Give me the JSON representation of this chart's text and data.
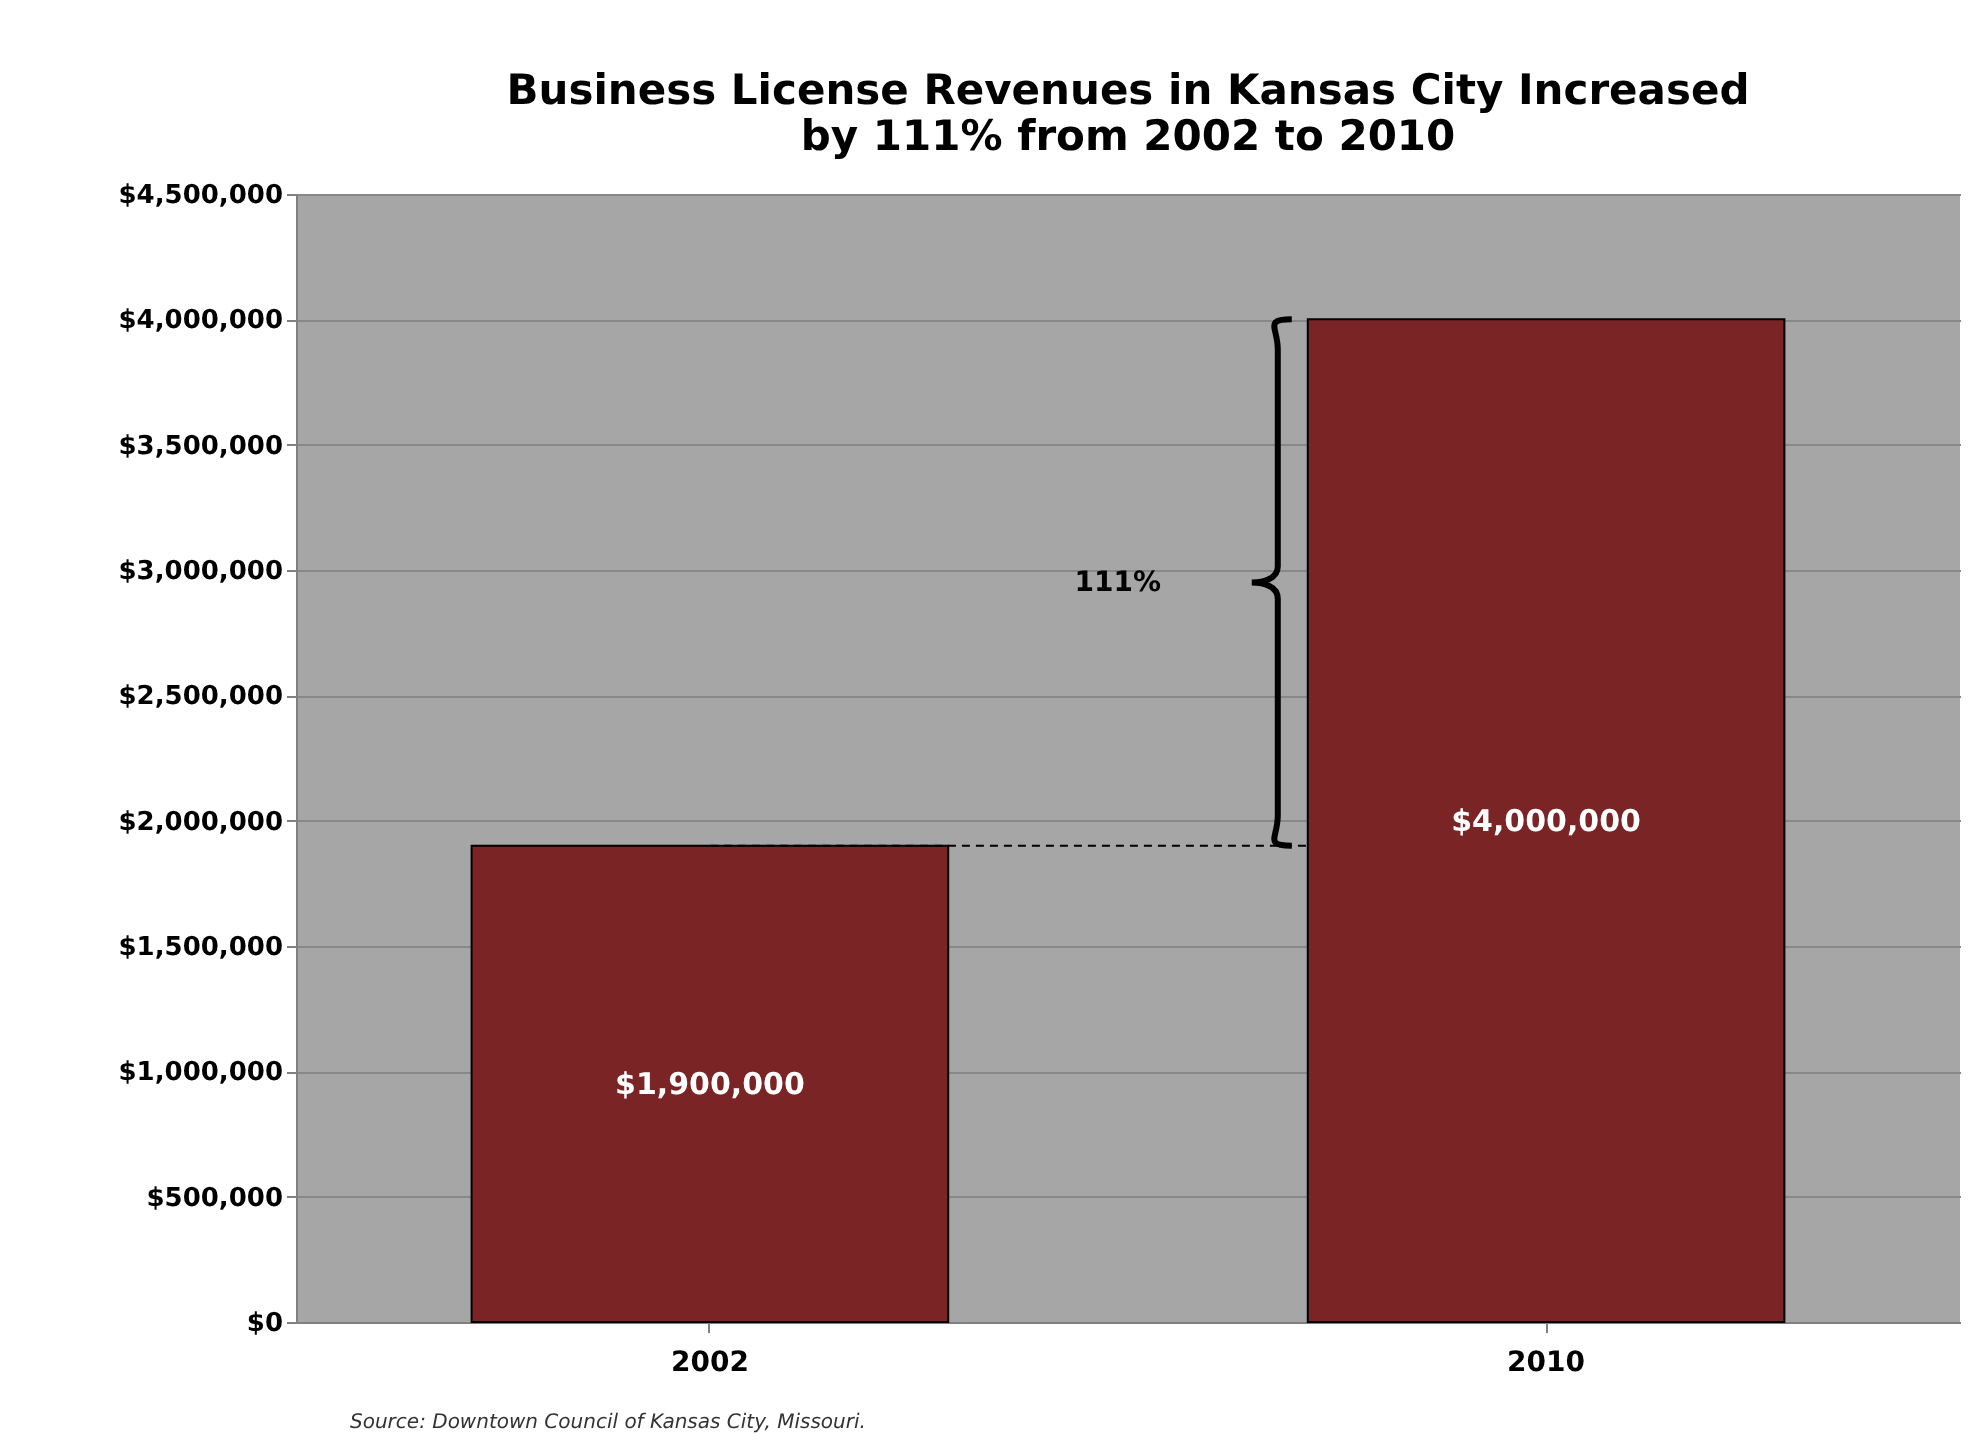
{
  "chart_data": {
    "type": "bar",
    "title": "Business License Revenues in Kansas City Increased\nby 111% from 2002 to 2010",
    "categories": [
      "2002",
      "2010"
    ],
    "values": [
      1900000,
      4000000
    ],
    "value_labels": [
      "$1,900,000",
      "$4,000,000"
    ],
    "color": "#7a2426",
    "ylim": [
      0,
      4500000
    ],
    "yticks": [
      {
        "value": 0,
        "label": "$0"
      },
      {
        "value": 500000,
        "label": "$500,000"
      },
      {
        "value": 1000000,
        "label": "$1,000,000"
      },
      {
        "value": 1500000,
        "label": "$1,500,000"
      },
      {
        "value": 2000000,
        "label": "$2,000,000"
      },
      {
        "value": 2500000,
        "label": "$2,500,000"
      },
      {
        "value": 3000000,
        "label": "$3,000,000"
      },
      {
        "value": 3500000,
        "label": "$3,500,000"
      },
      {
        "value": 4000000,
        "label": "$4,000,000"
      },
      {
        "value": 4500000,
        "label": "$4,500,000"
      }
    ],
    "grid": "y",
    "ref_lines": [
      {
        "axis": "y",
        "value": 1900000,
        "line_style": "dashed",
        "color": "#000000"
      }
    ],
    "annotations": [
      "111%",
      "Source:  Downtown Council of Kansas City, Missouri."
    ]
  }
}
